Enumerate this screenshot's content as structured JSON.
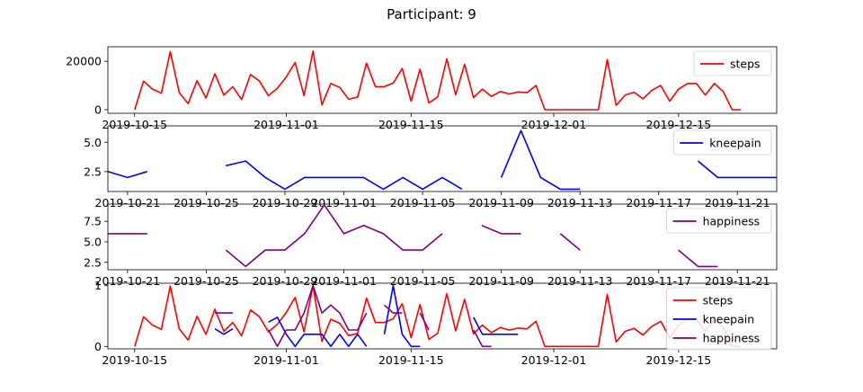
{
  "title": "Participant: 9",
  "chart_data": [
    {
      "type": "line",
      "xaxis": "date",
      "xlim": [
        "2019-10-12",
        "2019-12-26"
      ],
      "ylim": [
        -1500,
        26000
      ],
      "yticks": [
        0,
        20000
      ],
      "xticks": [
        "2019-10-15",
        "2019-11-01",
        "2019-11-15",
        "2019-12-01",
        "2019-12-15"
      ],
      "legend": "top-right",
      "series": [
        {
          "name": "steps",
          "color": "#ff0000",
          "points": [
            [
              "2019-10-15",
              0
            ],
            [
              "2019-10-16",
              11800
            ],
            [
              "2019-10-17",
              8500
            ],
            [
              "2019-10-18",
              6800
            ],
            [
              "2019-10-19",
              24000
            ],
            [
              "2019-10-20",
              7000
            ],
            [
              "2019-10-21",
              2500
            ],
            [
              "2019-10-22",
              12000
            ],
            [
              "2019-10-23",
              4800
            ],
            [
              "2019-10-24",
              14800
            ],
            [
              "2019-10-25",
              6000
            ],
            [
              "2019-10-26",
              9500
            ],
            [
              "2019-10-27",
              4200
            ],
            [
              "2019-10-28",
              14500
            ],
            [
              "2019-10-29",
              11800
            ],
            [
              "2019-10-30",
              5800
            ],
            [
              "2019-10-31",
              8800
            ],
            [
              "2019-11-01",
              13500
            ],
            [
              "2019-11-02",
              19500
            ],
            [
              "2019-11-03",
              5800
            ],
            [
              "2019-11-04",
              24200
            ],
            [
              "2019-11-05",
              2000
            ],
            [
              "2019-11-06",
              10800
            ],
            [
              "2019-11-07",
              9200
            ],
            [
              "2019-11-08",
              4300
            ],
            [
              "2019-11-09",
              5200
            ],
            [
              "2019-11-10",
              19200
            ],
            [
              "2019-11-11",
              9500
            ],
            [
              "2019-11-12",
              9500
            ],
            [
              "2019-11-13",
              11000
            ],
            [
              "2019-11-14",
              17000
            ],
            [
              "2019-11-15",
              3500
            ],
            [
              "2019-11-16",
              16700
            ],
            [
              "2019-11-17",
              2800
            ],
            [
              "2019-11-18",
              5300
            ],
            [
              "2019-11-19",
              21000
            ],
            [
              "2019-11-20",
              6200
            ],
            [
              "2019-11-21",
              18700
            ],
            [
              "2019-11-22",
              5000
            ],
            [
              "2019-11-23",
              8500
            ],
            [
              "2019-11-24",
              5500
            ],
            [
              "2019-11-25",
              7500
            ],
            [
              "2019-11-26",
              6500
            ],
            [
              "2019-11-27",
              7300
            ],
            [
              "2019-11-28",
              7000
            ],
            [
              "2019-11-29",
              10000
            ],
            [
              "2019-11-30",
              0
            ],
            [
              "2019-12-01",
              0
            ],
            [
              "2019-12-02",
              0
            ],
            [
              "2019-12-03",
              0
            ],
            [
              "2019-12-04",
              0
            ],
            [
              "2019-12-05",
              0
            ],
            [
              "2019-12-06",
              0
            ],
            [
              "2019-12-07",
              20700
            ],
            [
              "2019-12-08",
              1800
            ],
            [
              "2019-12-09",
              6000
            ],
            [
              "2019-12-10",
              7200
            ],
            [
              "2019-12-11",
              4500
            ],
            [
              "2019-12-12",
              8000
            ],
            [
              "2019-12-13",
              10000
            ],
            [
              "2019-12-14",
              3500
            ],
            [
              "2019-12-15",
              8500
            ],
            [
              "2019-12-16",
              10800
            ],
            [
              "2019-12-17",
              10800
            ],
            [
              "2019-12-18",
              6000
            ],
            [
              "2019-12-19",
              10800
            ],
            [
              "2019-12-20",
              7500
            ],
            [
              "2019-12-21",
              0
            ],
            [
              "2019-12-22",
              0
            ]
          ]
        }
      ]
    },
    {
      "type": "line",
      "xaxis": "date",
      "xlim": [
        "2019-10-20",
        "2019-11-23"
      ],
      "ylim": [
        0.8,
        6.4
      ],
      "yticks": [
        2.5,
        5.0
      ],
      "xticks": [
        "2019-10-21",
        "2019-10-25",
        "2019-10-29",
        "2019-11-01",
        "2019-11-05",
        "2019-11-09",
        "2019-11-13",
        "2019-11-17",
        "2019-11-21"
      ],
      "xtick_labels": [
        "2019-10-21",
        "2019-10-25",
        "2019-10-29",
        "2019-11-01",
        "2019-11-05",
        "2019-11-09",
        "2019-11-13",
        "2019-11-17",
        "2019-11-21"
      ],
      "legend": "top-right",
      "series": [
        {
          "name": "kneepain",
          "color": "#0000ff",
          "segments": [
            [
              [
                "2019-10-20",
                2.5
              ],
              [
                "2019-10-21",
                2.0
              ],
              [
                "2019-10-22",
                2.5
              ]
            ],
            [
              [
                "2019-10-26",
                3.0
              ],
              [
                "2019-10-27",
                3.4
              ],
              [
                "2019-10-28",
                2.0
              ],
              [
                "2019-10-29",
                1.0
              ],
              [
                "2019-10-30",
                2.0
              ],
              [
                "2019-10-31",
                2.0
              ],
              [
                "2019-11-01",
                2.0
              ],
              [
                "2019-11-02",
                2.0
              ],
              [
                "2019-11-03",
                1.0
              ],
              [
                "2019-11-04",
                2.0
              ],
              [
                "2019-11-05",
                1.0
              ],
              [
                "2019-11-06",
                2.0
              ],
              [
                "2019-11-07",
                1.0
              ]
            ],
            [
              [
                "2019-11-09",
                2.0
              ],
              [
                "2019-11-10",
                6.0
              ],
              [
                "2019-11-11",
                2.0
              ],
              [
                "2019-11-12",
                1.0
              ],
              [
                "2019-11-13",
                1.0
              ]
            ],
            [
              [
                "2019-11-19",
                3.4
              ],
              [
                "2019-11-20",
                2.0
              ],
              [
                "2019-11-21",
                2.0
              ],
              [
                "2019-11-22",
                2.0
              ],
              [
                "2019-11-23",
                2.0
              ]
            ]
          ]
        }
      ]
    },
    {
      "type": "line",
      "xaxis": "date",
      "xlim": [
        "2019-10-20",
        "2019-11-23"
      ],
      "ylim": [
        1.6,
        9.6
      ],
      "yticks": [
        2.5,
        5.0,
        7.5
      ],
      "xticks": [
        "2019-10-21",
        "2019-10-25",
        "2019-10-29",
        "2019-11-01",
        "2019-11-05",
        "2019-11-09",
        "2019-11-13",
        "2019-11-17",
        "2019-11-21"
      ],
      "legend": "top-right",
      "series": [
        {
          "name": "happiness",
          "color": "#800080",
          "segments": [
            [
              [
                "2019-10-20",
                6
              ],
              [
                "2019-10-21",
                6
              ],
              [
                "2019-10-22",
                6
              ]
            ],
            [
              [
                "2019-10-26",
                4
              ],
              [
                "2019-10-27",
                2
              ],
              [
                "2019-10-28",
                4
              ],
              [
                "2019-10-29",
                4
              ],
              [
                "2019-10-30",
                6
              ],
              [
                "2019-10-31",
                9.5
              ],
              [
                "2019-11-01",
                6
              ],
              [
                "2019-11-02",
                7
              ],
              [
                "2019-11-03",
                6
              ],
              [
                "2019-11-04",
                4
              ],
              [
                "2019-11-05",
                4
              ],
              [
                "2019-11-06",
                6
              ]
            ],
            [
              [
                "2019-11-08",
                7
              ],
              [
                "2019-11-09",
                6
              ],
              [
                "2019-11-10",
                6
              ]
            ],
            [
              [
                "2019-11-12",
                6
              ],
              [
                "2019-11-13",
                4
              ]
            ],
            [
              [
                "2019-11-18",
                4
              ],
              [
                "2019-11-19",
                2
              ],
              [
                "2019-11-20",
                2
              ]
            ]
          ]
        }
      ]
    },
    {
      "type": "line",
      "xaxis": "date",
      "xlim": [
        "2019-10-12",
        "2019-12-26"
      ],
      "ylim": [
        -0.04,
        1.04
      ],
      "yticks": [
        0,
        1
      ],
      "xticks": [
        "2019-10-15",
        "2019-11-01",
        "2019-11-15",
        "2019-12-01",
        "2019-12-15"
      ],
      "legend": "top-right",
      "series": [
        {
          "name": "steps",
          "color": "#ff0000",
          "source": "normalized steps (value / 24200)"
        },
        {
          "name": "kneepain",
          "color": "#0000ff",
          "segments": [
            [
              [
                "2019-10-24",
                0.29
              ],
              [
                "2019-10-25",
                0.2
              ],
              [
                "2019-10-26",
                0.29
              ]
            ],
            [
              [
                "2019-10-30",
                0.4
              ],
              [
                "2019-10-31",
                0.48
              ],
              [
                "2019-11-01",
                0.2
              ],
              [
                "2019-11-02",
                0.0
              ],
              [
                "2019-11-03",
                0.2
              ],
              [
                "2019-11-04",
                0.2
              ],
              [
                "2019-11-05",
                0.2
              ],
              [
                "2019-11-06",
                0.0
              ],
              [
                "2019-11-07",
                0.2
              ],
              [
                "2019-11-08",
                0.0
              ],
              [
                "2019-11-09",
                0.2
              ],
              [
                "2019-11-10",
                0.0
              ]
            ],
            [
              [
                "2019-11-12",
                0.2
              ],
              [
                "2019-11-13",
                1.0
              ],
              [
                "2019-11-14",
                0.2
              ],
              [
                "2019-11-15",
                0.0
              ],
              [
                "2019-11-16",
                0.0
              ]
            ],
            [
              [
                "2019-11-22",
                0.48
              ],
              [
                "2019-11-23",
                0.2
              ],
              [
                "2019-11-24",
                0.2
              ],
              [
                "2019-11-25",
                0.2
              ],
              [
                "2019-11-26",
                0.2
              ],
              [
                "2019-11-27",
                0.2
              ]
            ]
          ]
        },
        {
          "name": "happiness",
          "color": "#800080",
          "segments": [
            [
              [
                "2019-10-24",
                0.55
              ],
              [
                "2019-10-25",
                0.55
              ],
              [
                "2019-10-26",
                0.55
              ]
            ],
            [
              [
                "2019-10-30",
                0.27
              ],
              [
                "2019-10-31",
                0.0
              ],
              [
                "2019-11-01",
                0.27
              ],
              [
                "2019-11-02",
                0.27
              ],
              [
                "2019-11-03",
                0.55
              ],
              [
                "2019-11-04",
                1.0
              ],
              [
                "2019-11-05",
                0.55
              ],
              [
                "2019-11-06",
                0.68
              ],
              [
                "2019-11-07",
                0.55
              ],
              [
                "2019-11-08",
                0.27
              ],
              [
                "2019-11-09",
                0.27
              ],
              [
                "2019-11-10",
                0.55
              ]
            ],
            [
              [
                "2019-11-12",
                0.68
              ],
              [
                "2019-11-13",
                0.55
              ],
              [
                "2019-11-14",
                0.55
              ]
            ],
            [
              [
                "2019-11-16",
                0.55
              ],
              [
                "2019-11-17",
                0.27
              ]
            ],
            [
              [
                "2019-11-22",
                0.27
              ],
              [
                "2019-11-23",
                0.0
              ],
              [
                "2019-11-24",
                0.0
              ]
            ]
          ]
        }
      ]
    }
  ]
}
